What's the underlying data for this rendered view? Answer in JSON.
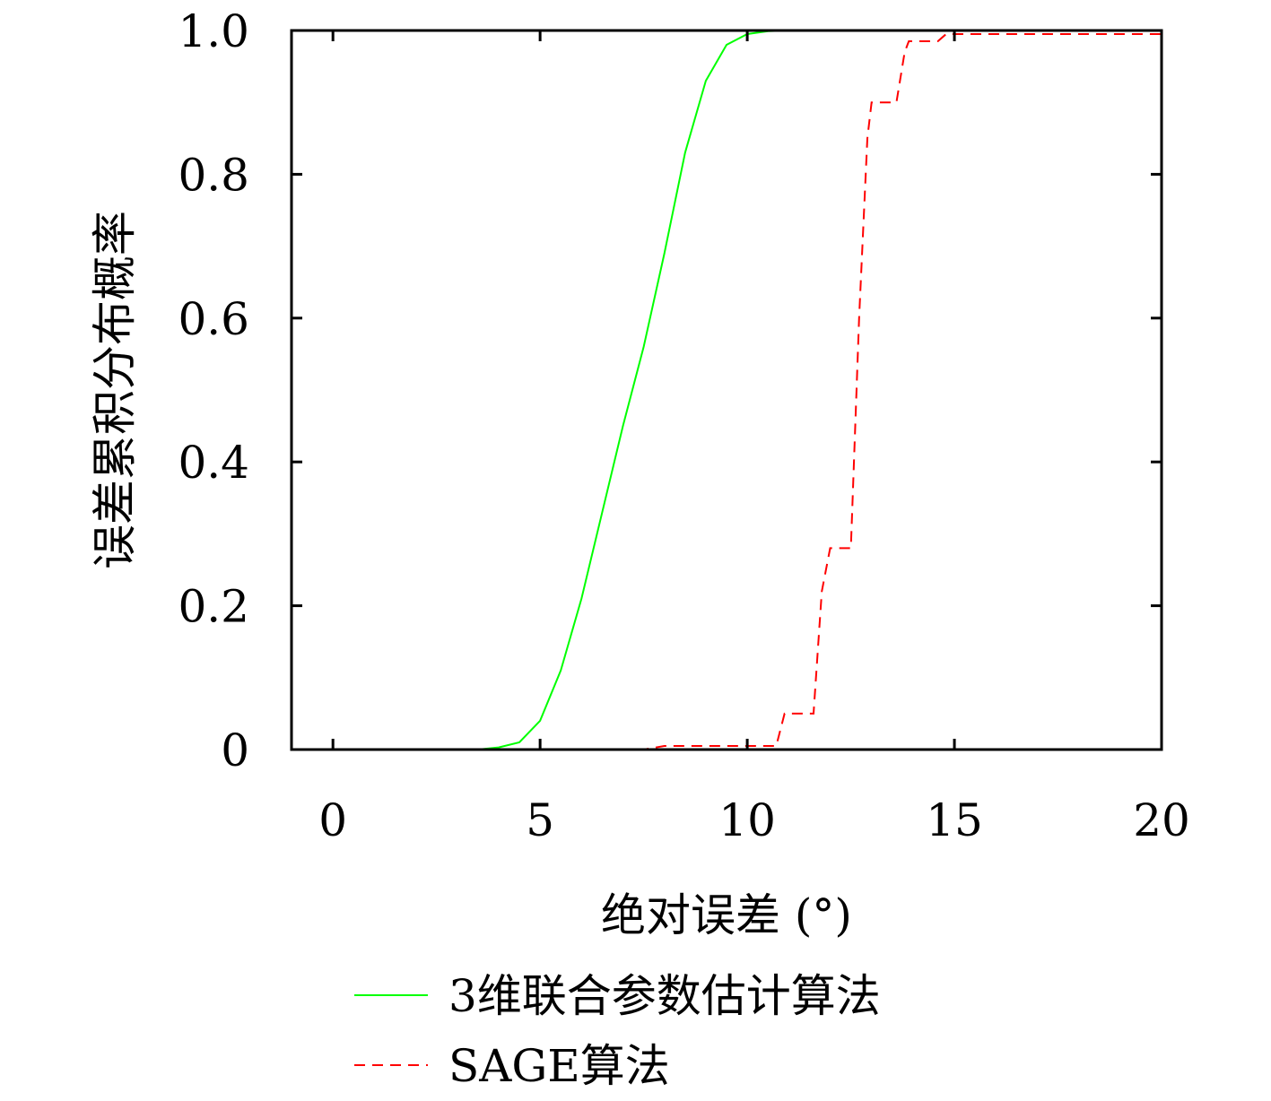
{
  "chart_data": {
    "type": "line",
    "xlabel": "绝对误差 (°)",
    "ylabel": "误差累积分布概率",
    "xlim": [
      -1,
      20
    ],
    "ylim": [
      0,
      1
    ],
    "x_ticks": [
      "0",
      "5",
      "10",
      "15",
      "20"
    ],
    "y_ticks": [
      "0",
      "0.2",
      "0.4",
      "0.6",
      "0.8",
      "1.0"
    ],
    "grid": false,
    "legend_position": "bottom",
    "series": [
      {
        "name": "3维联合参数估计算法",
        "color": "#00ff00",
        "style": "solid",
        "x": [
          0,
          3.5,
          4.0,
          4.5,
          5.0,
          5.5,
          6.0,
          6.5,
          7.0,
          7.5,
          8.0,
          8.5,
          9.0,
          9.5,
          10.0,
          10.5,
          11.0
        ],
        "y": [
          0,
          0,
          0.003,
          0.01,
          0.04,
          0.11,
          0.21,
          0.33,
          0.45,
          0.56,
          0.69,
          0.83,
          0.93,
          0.98,
          0.995,
          0.999,
          1.0
        ]
      },
      {
        "name": "SAGE算法",
        "color": "#ff0000",
        "style": "dashed",
        "x": [
          0,
          7.5,
          8.0,
          10.7,
          10.9,
          11.6,
          11.8,
          12.0,
          12.5,
          12.7,
          12.9,
          13.0,
          13.6,
          13.8,
          13.9,
          14.6,
          14.8,
          20.0
        ],
        "y": [
          0,
          0,
          0.005,
          0.005,
          0.05,
          0.05,
          0.22,
          0.28,
          0.28,
          0.6,
          0.85,
          0.9,
          0.9,
          0.97,
          0.985,
          0.985,
          0.995,
          0.995
        ]
      }
    ]
  }
}
